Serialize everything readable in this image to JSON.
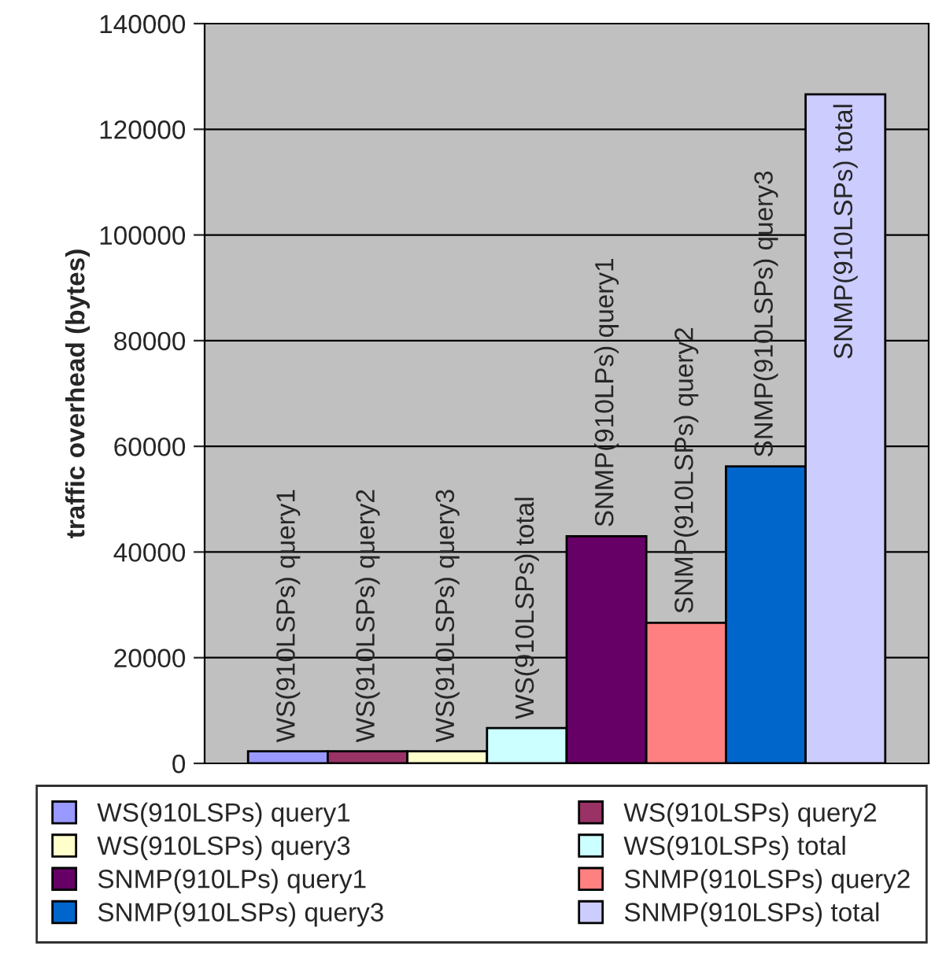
{
  "chart_data": {
    "type": "bar",
    "ylabel": "traffic overhead (bytes)",
    "categories": [
      null
    ],
    "ylim": [
      0,
      140000
    ],
    "yticks": [
      0,
      20000,
      40000,
      60000,
      80000,
      100000,
      120000,
      140000
    ],
    "grid": "y",
    "legend": "bottom",
    "series": [
      {
        "name": "WS(910LSPs) query1",
        "color": "#9999ff",
        "values": [
          2300
        ]
      },
      {
        "name": "WS(910LSPs) query2",
        "color": "#993366",
        "values": [
          2300
        ]
      },
      {
        "name": "WS(910LSPs) query3",
        "color": "#ffffcc",
        "values": [
          2300
        ]
      },
      {
        "name": "WS(910LSPs) total",
        "color": "#ccffff",
        "values": [
          6700
        ]
      },
      {
        "name": "SNMP(910LPs) query1",
        "color": "#660066",
        "values": [
          43000
        ]
      },
      {
        "name": "SNMP(910LSPs) query2",
        "color": "#ff8080",
        "values": [
          26600
        ]
      },
      {
        "name": "SNMP(910LSPs) query3",
        "color": "#0066cc",
        "values": [
          56200
        ]
      },
      {
        "name": "SNMP(910LSPs) total",
        "color": "#ccccff",
        "values": [
          126600
        ]
      }
    ]
  }
}
